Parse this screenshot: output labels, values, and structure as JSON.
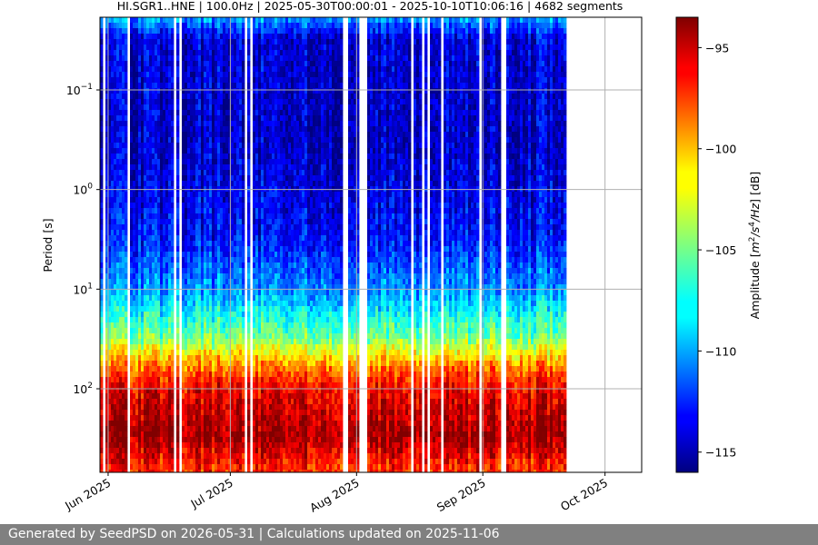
{
  "chart_data": {
    "type": "heatmap",
    "title": "HI.SGR1..HNE | 100.0Hz | 2025-05-30T00:00:01 - 2025-10-10T10:06:16 | 4682 segments",
    "xlabel": "",
    "ylabel": "Period [s]",
    "y_scale": "log",
    "y_inverted": true,
    "y_ticks": [
      {
        "exp": -1,
        "value": 0.1
      },
      {
        "exp": 0,
        "value": 1
      },
      {
        "exp": 1,
        "value": 10
      },
      {
        "exp": 2,
        "value": 100
      }
    ],
    "x_tick_labels": [
      "Jun 2025",
      "Jul 2025",
      "Aug 2025",
      "Sep 2025",
      "Oct 2025"
    ],
    "x_ticks": [
      "2025-06-01",
      "2025-07-01",
      "2025-08-01",
      "2025-09-01",
      "2025-10-01"
    ],
    "xlim": [
      "2025-05-30",
      "2025-10-10"
    ],
    "data_range": [
      "2025-05-30",
      "2025-09-21"
    ],
    "grid": true,
    "colormap": "jet",
    "colorbar": {
      "label_prefix": "Amplitude [",
      "unit_m": "m",
      "unit_m_exp": "2",
      "unit_s": "/s",
      "unit_s_exp": "4",
      "unit_hz": "/Hz",
      "label_suffix": "] [dB]",
      "vmin": -116,
      "vmax": -93.5,
      "ticks": [
        -95,
        -100,
        -105,
        -110,
        -115
      ]
    },
    "amplitude_profile": [
      {
        "period": 0.02,
        "db": -110
      },
      {
        "period": 0.03,
        "db": -114
      },
      {
        "period": 0.3,
        "db": -114.5
      },
      {
        "period": 3,
        "db": -113
      },
      {
        "period": 10,
        "db": -110
      },
      {
        "period": 30,
        "db": -105
      },
      {
        "period": 60,
        "db": -99
      },
      {
        "period": 100,
        "db": -96
      },
      {
        "period": 300,
        "db": -94
      },
      {
        "period": 600,
        "db": -97
      }
    ]
  },
  "footer": {
    "text": "Generated by SeedPSD on 2026-05-31 | Calculations updated on 2025-11-06"
  },
  "colors": {
    "footer_bg": "#808080",
    "grid": "#b0b0b0"
  }
}
